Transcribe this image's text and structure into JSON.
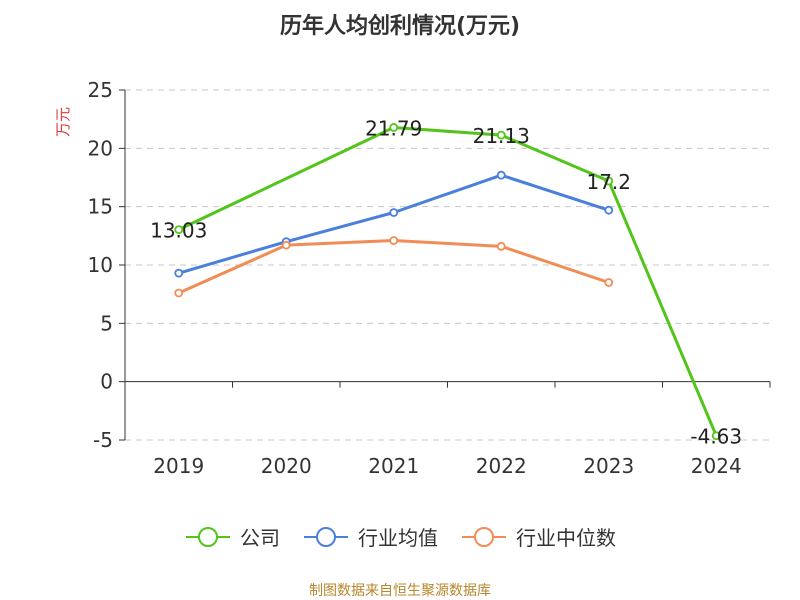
{
  "chart_data": {
    "type": "line",
    "title": "历年人均创利情况(万元)",
    "ylabel": "万元",
    "categories": [
      "2019",
      "2020",
      "2021",
      "2022",
      "2023",
      "2024"
    ],
    "ylim": [
      -5,
      25
    ],
    "yticks": [
      -5,
      0,
      5,
      10,
      15,
      20,
      25
    ],
    "grid": true,
    "legend_position": "bottom",
    "series": [
      {
        "name": "公司",
        "color": "#52c41a",
        "values": [
          13.03,
          null,
          21.79,
          21.13,
          17.2,
          -4.63
        ],
        "labels": [
          "13.03",
          null,
          "21.79",
          "21.13",
          "17.2",
          "-4.63"
        ]
      },
      {
        "name": "行业均值",
        "color": "#4a7fdc",
        "values": [
          9.3,
          12.0,
          14.5,
          17.7,
          14.7,
          null
        ]
      },
      {
        "name": "行业中位数",
        "color": "#f28c55",
        "values": [
          7.6,
          11.7,
          12.1,
          11.6,
          8.5,
          null
        ]
      }
    ]
  },
  "source_note": "制图数据来自恒生聚源数据库"
}
